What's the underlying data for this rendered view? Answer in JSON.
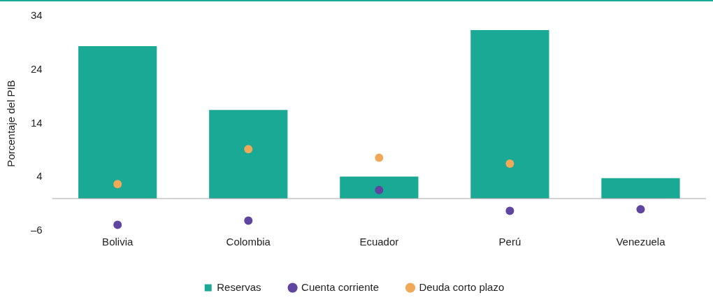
{
  "chart_data": {
    "type": "bar",
    "ylabel": "Porcentaje del PIB",
    "categories": [
      "Bolivia",
      "Colombia",
      "Ecuador",
      "Perú",
      "Venezuela"
    ],
    "series": [
      {
        "name": "Reservas",
        "color": "#1aa994",
        "values": [
          28.4,
          16.5,
          4.1,
          31.4,
          3.8
        ]
      },
      {
        "name": "Cuenta corriente",
        "type": "scatter",
        "color": "#5f45a0",
        "x": [
          "Bolivia",
          "Colombia",
          "Ecuador",
          "Perú",
          "Venezuela"
        ],
        "values": [
          -4.9,
          -4.1,
          1.6,
          -2.3,
          -2.0
        ]
      },
      {
        "name": "Deuda corto plazo",
        "type": "scatter",
        "color": "#f0a859",
        "x": [
          "Bolivia",
          "Colombia",
          "Ecuador",
          "Perú",
          "Venezuela"
        ],
        "values": [
          2.7,
          9.2,
          7.6,
          6.5,
          null
        ]
      }
    ],
    "ylim": [
      -6,
      34
    ],
    "yticks": [
      {
        "value": -6,
        "label": "–6"
      },
      4,
      14,
      24,
      34
    ],
    "grid": false,
    "legend": "bottom",
    "marker": "circle"
  }
}
